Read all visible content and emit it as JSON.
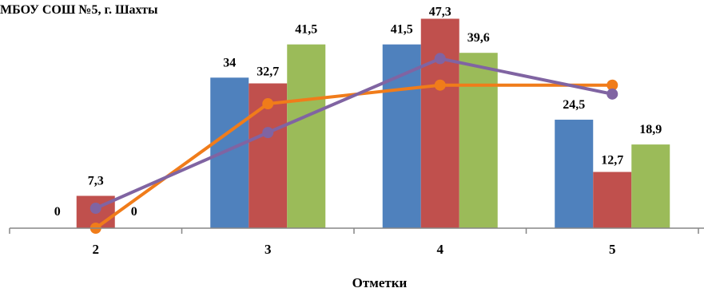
{
  "chart_data": {
    "type": "bar",
    "title": "МБОУ  СОШ №5, г. Шахты",
    "xlabel": "Отметки",
    "ylabel": "",
    "categories": [
      "2",
      "3",
      "4",
      "5"
    ],
    "ylim": [
      0,
      50
    ],
    "grid": false,
    "legend": "none",
    "series": [
      {
        "values": [
          0,
          34,
          41.5,
          24.5
        ],
        "labels": [
          "0",
          "34",
          "41,5",
          "24,5"
        ],
        "color": "#4f81bd"
      },
      {
        "values": [
          7.3,
          32.7,
          47.3,
          12.7
        ],
        "labels": [
          "7,3",
          "32,7",
          "47,3",
          "12,7"
        ],
        "color": "#c0504d"
      },
      {
        "values": [
          0,
          41.5,
          39.6,
          18.9
        ],
        "labels": [
          "0",
          "41,5",
          "39,6",
          "18,9"
        ],
        "color": "#9bbb59"
      }
    ],
    "lines": [
      {
        "type": "line",
        "values": [
          0,
          28.1,
          32.3,
          32.3
        ],
        "color": "#f07c1a"
      },
      {
        "type": "line",
        "values": [
          4.5,
          21.6,
          38.3,
          30.3
        ],
        "color": "#8064a2"
      }
    ]
  }
}
